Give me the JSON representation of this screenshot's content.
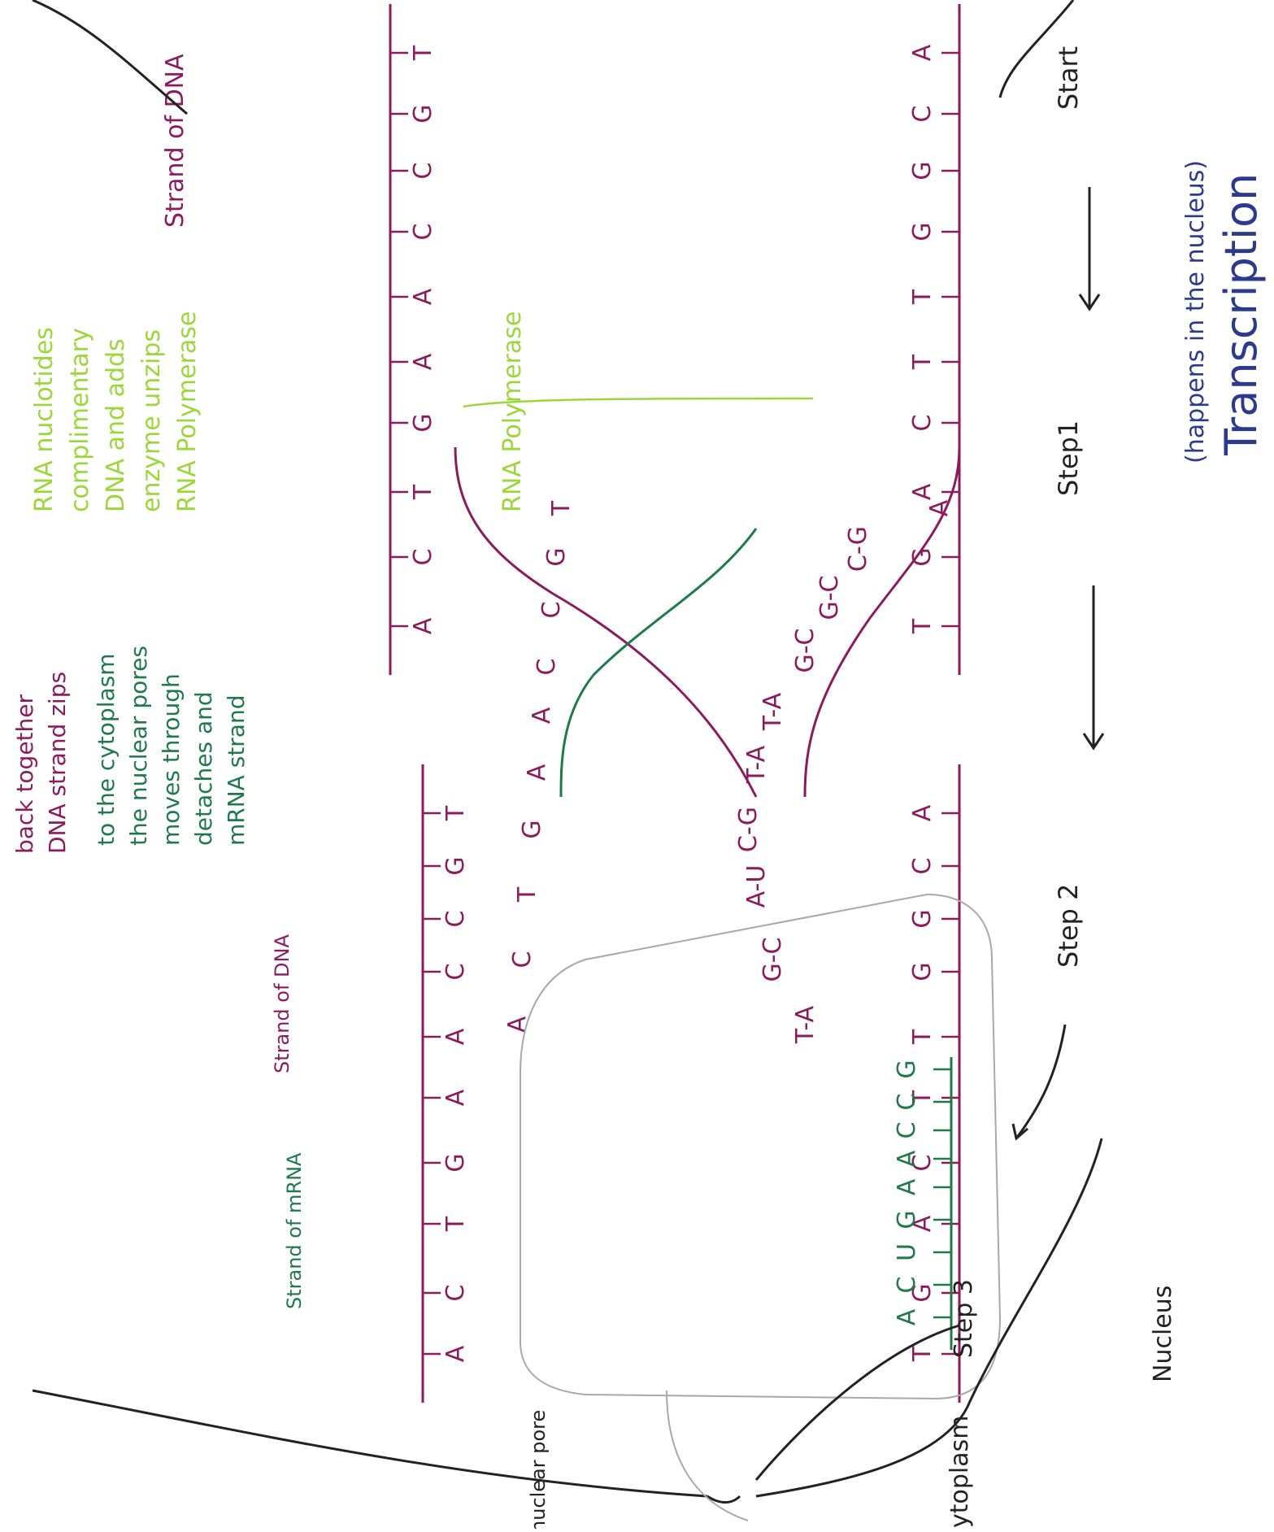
{
  "colors": {
    "dna": "#8b1a5e",
    "mrna": "#1f7a4a",
    "polymerase": "#9bd63a",
    "title": "#2b3a8c",
    "outline": "#222222",
    "cell": "#a8a8a8"
  },
  "title": {
    "main": "Transcription",
    "sub": "(happens in the nucleus)"
  },
  "steps": {
    "start": "Start",
    "step1": "Step1",
    "step2": "Step 2",
    "step3": "Step 3"
  },
  "labels": {
    "strand_dna_1": "Strand of DNA",
    "strand_dna_2": "Strand of DNA",
    "strand_mrna": "Strand of mRNA",
    "rna_polymerase": "RNA Polymerase",
    "nucleus": "Nucleus",
    "cytoplasm": "Cytoplasm",
    "nuclear_pore": "nuclear pore"
  },
  "notes": {
    "step1": [
      "RNA Polymerase",
      "enzyme unzips",
      "DNA and adds",
      "complimentary",
      "RNA nuclotides"
    ],
    "step2_mrna": [
      "mRNA strand",
      "detaches and",
      "moves through",
      "the nuclear pores",
      "to the cytoplasm"
    ],
    "step2_dna": [
      "DNA strand zips",
      "back together"
    ]
  },
  "sequences": {
    "start_top": [
      "A",
      "C",
      "G",
      "G",
      "T",
      "T",
      "C",
      "A",
      "G",
      "T"
    ],
    "start_bottom": [
      "T",
      "G",
      "C",
      "C",
      "A",
      "A",
      "G",
      "T",
      "C",
      "A"
    ],
    "step1_pairs": [
      "C-G",
      "G-C",
      "G-C",
      "T-A",
      "T-A",
      "C-G",
      "A-U",
      "G-C",
      "T-A"
    ],
    "step1_top_first": "A",
    "step1_bottom": [
      "T",
      "G",
      "C",
      "C",
      "A",
      "A",
      "G",
      "T",
      "C",
      "A"
    ],
    "step2_top": [
      "A",
      "C",
      "G",
      "G",
      "T",
      "T",
      "C",
      "A",
      "G",
      "T"
    ],
    "step2_bottom": [
      "T",
      "G",
      "C",
      "C",
      "A",
      "A",
      "G",
      "T",
      "C",
      "A"
    ],
    "mrna": [
      "G",
      "C",
      "C",
      "A",
      "A",
      "G",
      "U",
      "C",
      "A"
    ]
  }
}
